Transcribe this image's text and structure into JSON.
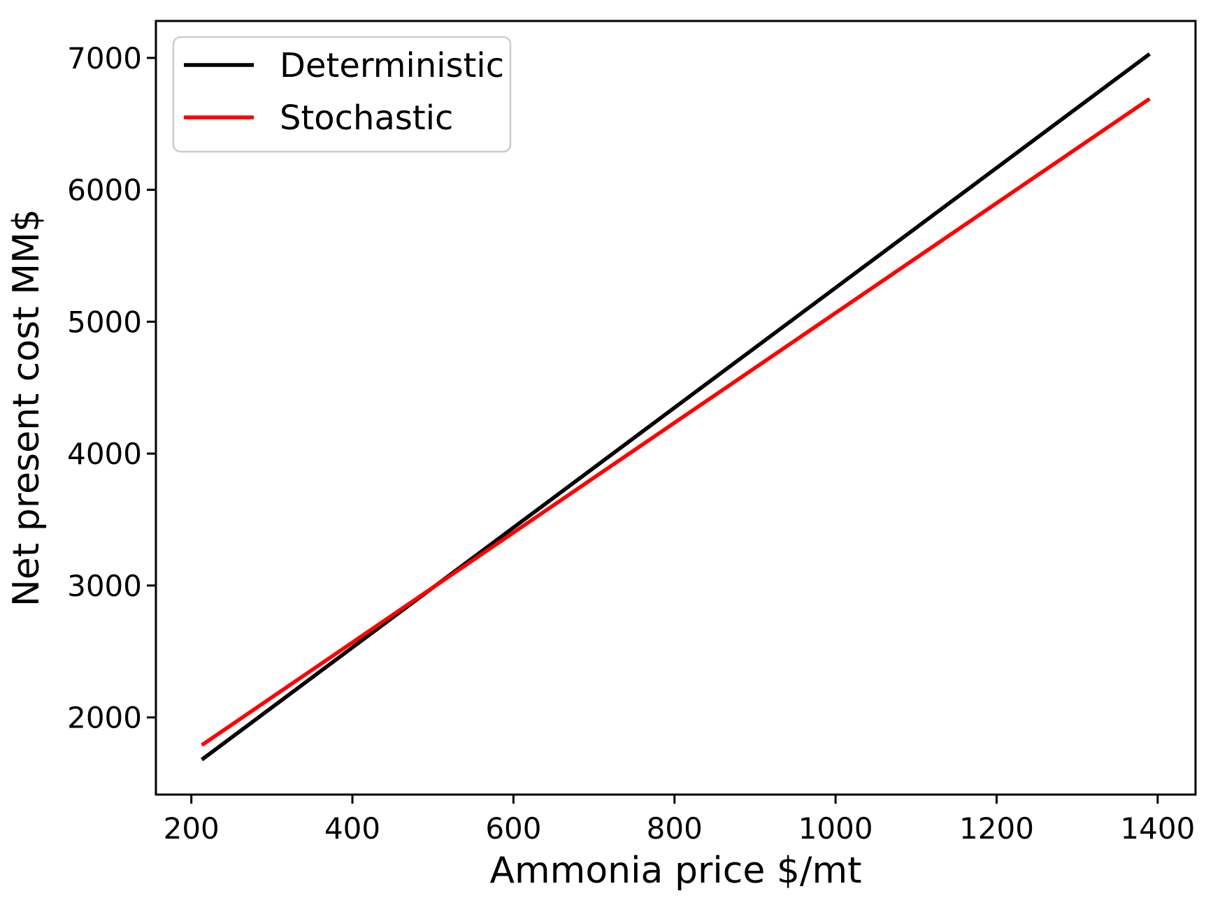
{
  "page": {
    "background": "#ffffff"
  },
  "chart_data": {
    "type": "line",
    "title": "",
    "xlabel": "Ammonia price $/mt",
    "ylabel": "Net present cost MM$",
    "xlim": [
      156,
      1447
    ],
    "ylim": [
      1415,
      7280
    ],
    "xticks": [
      200,
      400,
      600,
      800,
      1000,
      1200,
      1400
    ],
    "yticks": [
      2000,
      3000,
      4000,
      5000,
      6000,
      7000
    ],
    "grid": false,
    "legend": {
      "position": "upper-left",
      "entries": [
        {
          "label": "Deterministic",
          "color": "#000000"
        },
        {
          "label": "Stochastic",
          "color": "#ff0000"
        }
      ]
    },
    "series": [
      {
        "name": "Deterministic",
        "color": "#000000",
        "x": [
          213,
          1390
        ],
        "values": [
          1680,
          7030
        ]
      },
      {
        "name": "Stochastic",
        "color": "#ff0000",
        "x": [
          213,
          1390
        ],
        "values": [
          1790,
          6690
        ]
      }
    ],
    "colors": {
      "axis": "#000000",
      "tick_label": "#000000",
      "series_black": "#000000",
      "series_red": "#ff0000",
      "legend_border": "#cccccc",
      "legend_background": "#ffffff"
    }
  }
}
